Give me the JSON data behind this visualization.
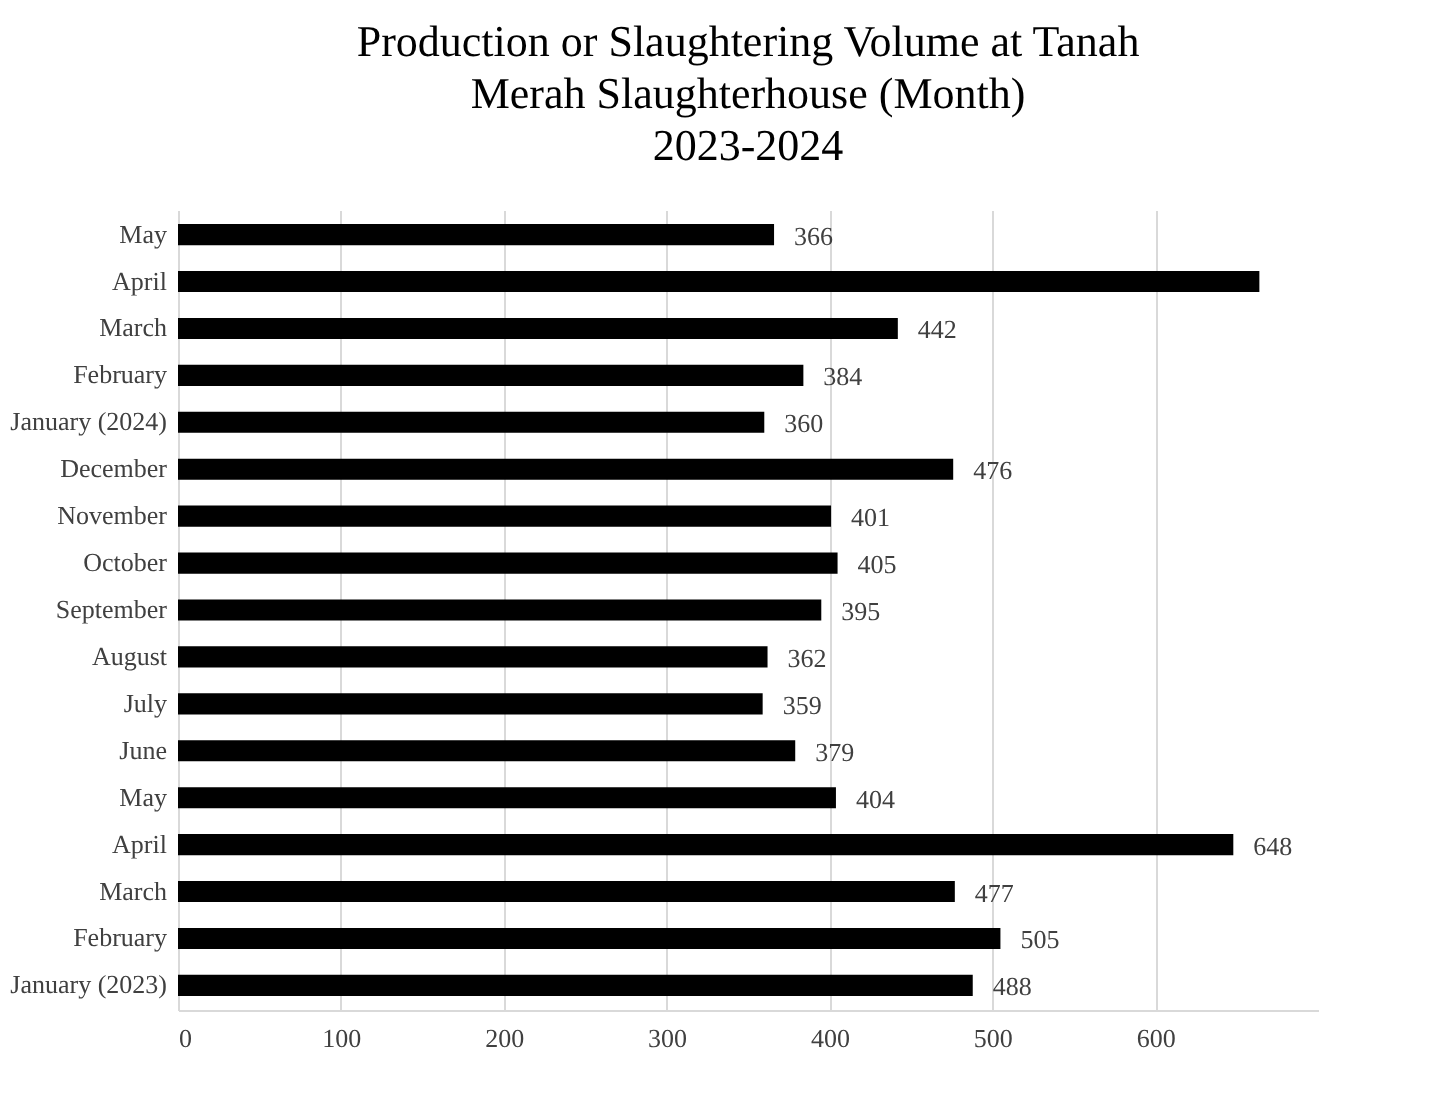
{
  "chart_data": {
    "type": "bar",
    "orientation": "horizontal",
    "title": "Production or Slaughtering Volume at Tanah Merah Slaughterhouse (Month)",
    "subtitle": "2023-2024",
    "categories": [
      "May",
      "April",
      "March",
      "February",
      "January (2024)",
      "December",
      "November",
      "October",
      "September",
      "August",
      "July",
      "June",
      "May",
      "April",
      "March",
      "February",
      "January (2023)"
    ],
    "values": [
      366,
      664,
      442,
      384,
      360,
      476,
      401,
      405,
      395,
      362,
      359,
      379,
      404,
      648,
      477,
      505,
      488
    ],
    "value_labels": [
      "366",
      null,
      "442",
      "384",
      "360",
      "476",
      "401",
      "405",
      "395",
      "362",
      "359",
      "379",
      "404",
      "648",
      "477",
      "505",
      "488"
    ],
    "color": "#000000",
    "xlim": [
      0,
      700
    ],
    "xticks": [
      0,
      100,
      200,
      300,
      400,
      500,
      600
    ],
    "grid": "x"
  }
}
